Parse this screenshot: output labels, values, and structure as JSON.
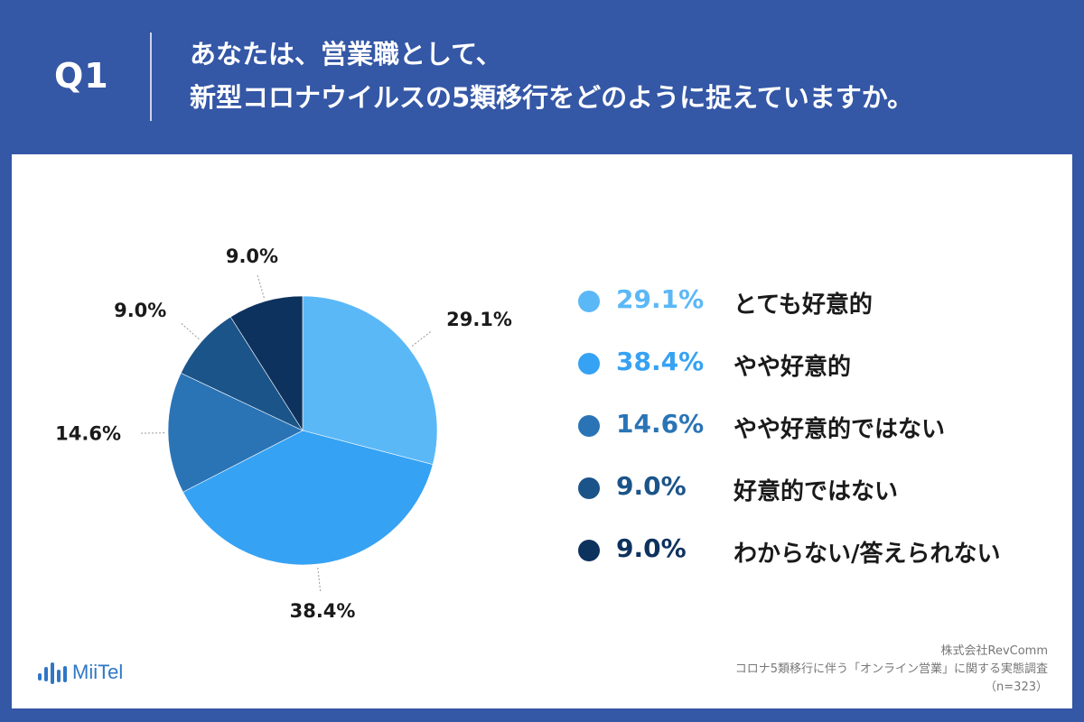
{
  "header": {
    "q_label": "Q1",
    "question_line1": "あなたは、営業職として、",
    "question_line2": "新型コロナウイルスの5類移行をどのように捉えていますか。"
  },
  "chart_data": {
    "type": "pie",
    "title": "新型コロナウイルスの5類移行をどのように捉えていますか。",
    "slices": [
      {
        "label": "とても好意的",
        "value": 29.1,
        "text": "29.1%",
        "color": "#5bb8f7"
      },
      {
        "label": "やや好意的",
        "value": 38.4,
        "text": "38.4%",
        "color": "#36a2f3"
      },
      {
        "label": "やや好意的ではない",
        "value": 14.6,
        "text": "14.6%",
        "color": "#2a74b6"
      },
      {
        "label": "好意的ではない",
        "value": 9.0,
        "text": "9.0%",
        "color": "#1b5489"
      },
      {
        "label": "わからない/答えられない",
        "value": 9.0,
        "text": "9.0%",
        "color": "#0e325e"
      }
    ],
    "legend_position": "right"
  },
  "footer": {
    "logo": "MiiTel",
    "company": "株式会社RevComm",
    "survey": "コロナ5類移行に伴う「オンライン営業」に関する実態調査",
    "sample": "（n=323）"
  },
  "colors": {
    "background": "#3457a6",
    "card": "#ffffff",
    "logo": "#2f77c6"
  }
}
